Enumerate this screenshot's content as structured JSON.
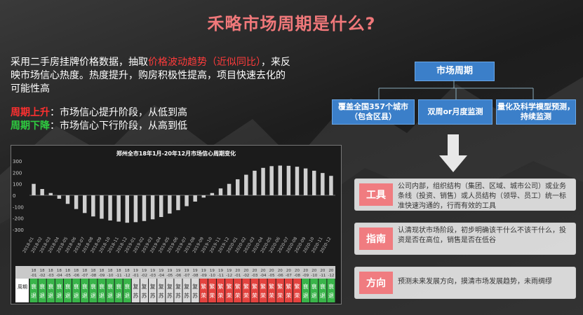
{
  "title": "禾略市场周期是什么?",
  "intro": {
    "text_1": "采用二手房挂牌价格数据，抽取",
    "highlight": "价格波动趋势（近似同比）",
    "text_2": "，来反映市场信心热度。热度提升，购房积极性提高，项目快速去化的可能性高"
  },
  "phases": {
    "up_key": "周期上升",
    "up_text": "：市场信心提升阶段，从低到高",
    "down_key": "周期下降",
    "down_text": "：市场信心下行阶段，从高到低"
  },
  "diagram": {
    "top": "市场周期",
    "boxes": [
      "覆盖全国357个城市（包含区县）",
      "双周or月度监测",
      "量化及科学模型预测，持续监测"
    ]
  },
  "rows": [
    {
      "tag": "工具",
      "text": "公司内部，组织结构（集团、区域、城市公司）或业务条线（投资、销售）或人员结构（领导、员工）统一标准快速沟通的，行而有效的工具"
    },
    {
      "tag": "指南",
      "text": "认清现状市场阶段，初步明确该干什么不该干什么，投资是否在高位，销售是否在低谷"
    },
    {
      "tag": "方向",
      "text": "预测未来发展方向，摸清市场发展趋势，未雨绸缪"
    }
  ],
  "colors": {
    "title": "#f0787a",
    "highlight": "#ff3b3b",
    "up": "#ff3030",
    "down": "#2ecc40",
    "bar": "#cfcfcf",
    "phase_up": "#e4433f",
    "phase_down": "#39b54a"
  },
  "chart_data": {
    "type": "bar",
    "title": "郑州全市18年1月-20年12月市场信心周期变化",
    "ylim": [
      -300,
      300
    ],
    "yticks": [
      300,
      200,
      100,
      0,
      -100,
      -200,
      -300
    ],
    "categories": [
      "2018-01",
      "2018-02",
      "2018-03",
      "2018-04",
      "2018-05",
      "2018-06",
      "2018-07",
      "2018-08",
      "2018-09",
      "2018-10",
      "2018-11",
      "2018-12",
      "2019-01",
      "2019-02",
      "2019-03",
      "2019-04",
      "2019-05",
      "2019-06",
      "2019-07",
      "2019-08",
      "2019-09",
      "2019-10",
      "2019-11",
      "2019-12",
      "2020-01",
      "2020-02",
      "2020-03",
      "2020-04",
      "2020-05",
      "2020-06",
      "2020-07",
      "2020-08",
      "2020-09",
      "2020-10",
      "2020-11",
      "2020-12"
    ],
    "values": [
      100,
      55,
      20,
      -30,
      -75,
      -120,
      -155,
      -185,
      -205,
      -220,
      -230,
      -240,
      -235,
      -225,
      -210,
      -190,
      -160,
      -130,
      -95,
      -55,
      -20,
      20,
      60,
      100,
      140,
      180,
      215,
      240,
      255,
      260,
      258,
      250,
      235,
      215,
      195,
      170
    ],
    "table_row_month": [
      "18\n-01",
      "18\n-02",
      "18\n-03",
      "18\n-04",
      "18\n-05",
      "18\n-06",
      "18\n-07",
      "18\n-08",
      "18\n-09",
      "18\n-10",
      "18\n-11",
      "18\n-12",
      "19\n-01",
      "19\n-02",
      "19\n-03",
      "19\n-04",
      "19\n-05",
      "19\n-06",
      "19\n-07",
      "19\n-08",
      "19\n-09",
      "19\n-10",
      "19\n-11",
      "19\n-12",
      "20\n-01",
      "20\n-02",
      "20\n-03",
      "20\n-04",
      "20\n-05",
      "20\n-06",
      "20\n-07",
      "20\n-08",
      "20\n-09",
      "20\n-10",
      "20\n-11",
      "20\n-12"
    ],
    "table_label": "周期",
    "phases": [
      "衰退",
      "衰退",
      "衰退",
      "衰退",
      "衰退",
      "衰退",
      "衰退",
      "衰退",
      "衰退",
      "衰退",
      "衰退",
      "衰退",
      "复苏",
      "复苏",
      "复苏",
      "复苏",
      "复苏",
      "复苏",
      "复苏",
      "复苏",
      "繁荣",
      "繁荣",
      "繁荣",
      "繁荣",
      "繁荣",
      "繁荣",
      "繁荣",
      "繁荣",
      "繁荣",
      "繁荣",
      "繁荣",
      "繁荣",
      "衰退",
      "衰退",
      "衰退",
      "衰退"
    ]
  }
}
